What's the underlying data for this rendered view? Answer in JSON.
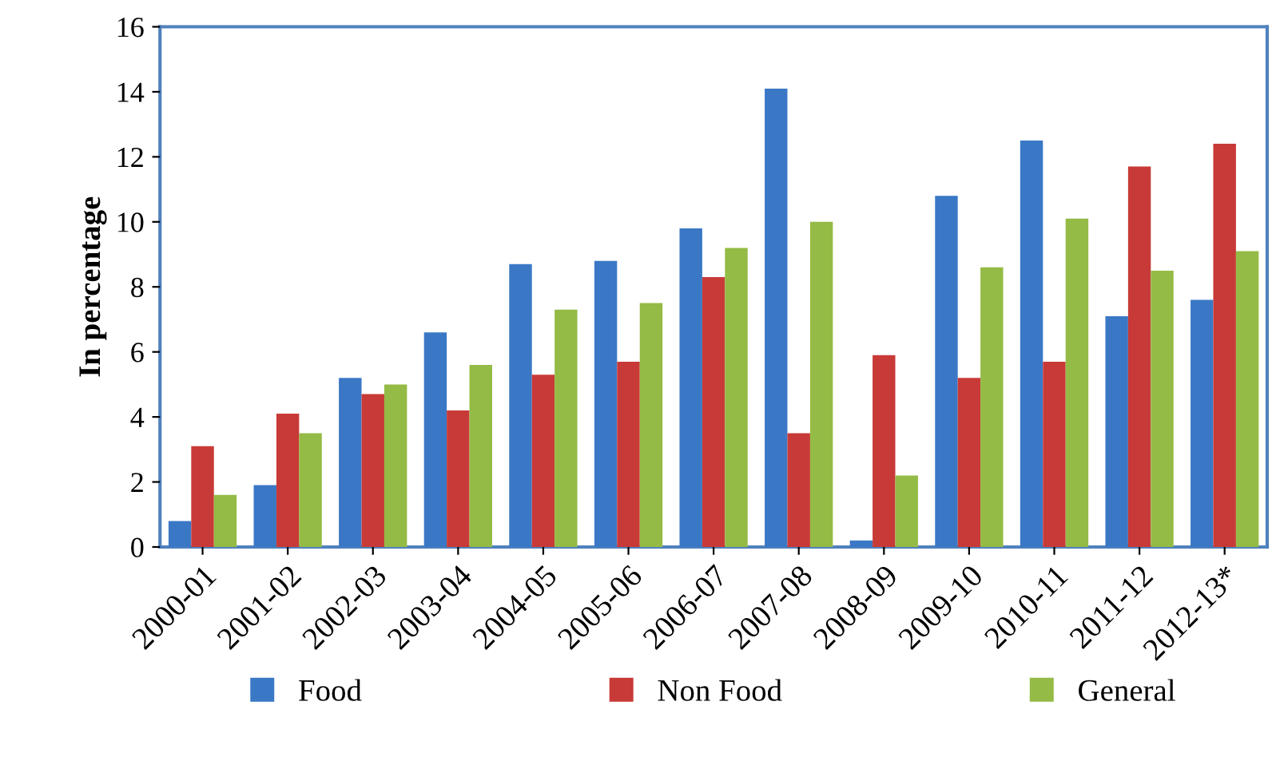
{
  "chart_data": {
    "type": "bar",
    "ylabel": "In percentage",
    "categories": [
      "2000-01",
      "2001-02",
      "2002-03",
      "2003-04",
      "2004-05",
      "2005-06",
      "2006-07",
      "2007-08",
      "2008-09",
      "2009-10",
      "2010-11",
      "2011-12",
      "2012-13*"
    ],
    "series": [
      {
        "name": "Food",
        "color": "#3a78c6",
        "values": [
          0.8,
          1.9,
          5.2,
          6.6,
          8.7,
          8.8,
          9.8,
          14.1,
          0.2,
          10.8,
          12.5,
          7.1,
          7.6
        ]
      },
      {
        "name": "Non Food",
        "color": "#c83a37",
        "values": [
          3.1,
          4.1,
          4.7,
          4.2,
          5.3,
          5.7,
          8.3,
          3.5,
          5.9,
          5.2,
          5.7,
          11.7,
          12.4
        ]
      },
      {
        "name": "General",
        "color": "#94bb45",
        "values": [
          1.6,
          3.5,
          5.0,
          5.6,
          7.3,
          7.5,
          9.2,
          10.0,
          2.2,
          8.6,
          10.1,
          8.5,
          9.1
        ]
      }
    ],
    "ylim": [
      0,
      16
    ],
    "yticks": [
      0,
      2,
      4,
      6,
      8,
      10,
      12,
      14,
      16
    ],
    "grid": false,
    "legend": "bottom"
  }
}
